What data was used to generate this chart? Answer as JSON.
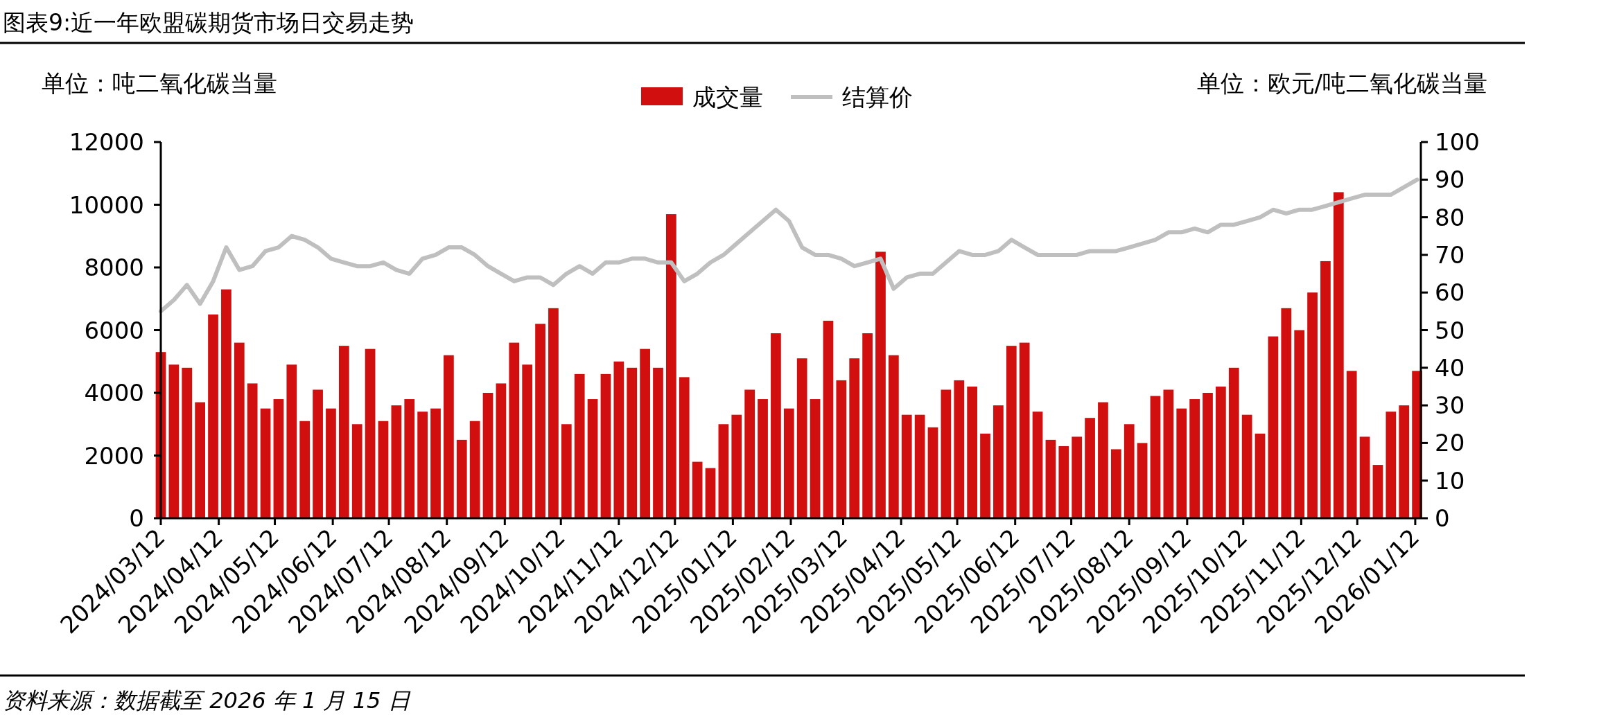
{
  "chart_data": {
    "type": "bar",
    "title": "图表9:近一年欧盟碳期货市场日交易走势",
    "ylabel": "单位：吨二氧化碳当量",
    "y2label": "单位：欧元/吨二氧化碳当量",
    "legend": "top",
    "annotations": [
      "资料来源：数据截至 2026 年 1 月 15 日"
    ],
    "x": [
      "2024-03-12",
      "2024-03-19",
      "2024-03-26",
      "2024-04-02",
      "2024-04-09",
      "2024-04-16",
      "2024-04-23",
      "2024-04-30",
      "2024-05-07",
      "2024-05-14",
      "2024-05-21",
      "2024-05-28",
      "2024-06-04",
      "2024-06-11",
      "2024-06-18",
      "2024-06-25",
      "2024-07-02",
      "2024-07-09",
      "2024-07-16",
      "2024-07-23",
      "2024-07-30",
      "2024-08-06",
      "2024-08-13",
      "2024-08-20",
      "2024-08-27",
      "2024-09-03",
      "2024-09-10",
      "2024-09-17",
      "2024-09-24",
      "2024-10-01",
      "2024-10-08",
      "2024-10-15",
      "2024-10-22",
      "2024-10-29",
      "2024-11-05",
      "2024-11-12",
      "2024-11-19",
      "2024-11-26",
      "2024-12-03",
      "2024-12-10",
      "2024-12-17",
      "2024-12-24",
      "2024-12-31",
      "2025-01-07",
      "2025-01-14",
      "2025-01-21",
      "2025-01-28",
      "2025-02-04",
      "2025-02-11",
      "2025-02-18",
      "2025-02-25",
      "2025-03-04",
      "2025-03-11",
      "2025-03-18",
      "2025-03-25",
      "2025-04-01",
      "2025-04-08",
      "2025-04-15",
      "2025-04-22",
      "2025-04-29",
      "2025-05-06",
      "2025-05-13",
      "2025-05-20",
      "2025-05-27",
      "2025-06-03",
      "2025-06-10",
      "2025-06-17",
      "2025-06-24",
      "2025-07-01",
      "2025-07-08",
      "2025-07-15",
      "2025-07-22",
      "2025-07-29",
      "2025-08-05",
      "2025-08-12",
      "2025-08-19",
      "2025-08-26",
      "2025-09-02",
      "2025-09-09",
      "2025-09-16",
      "2025-09-23",
      "2025-09-30",
      "2025-10-07",
      "2025-10-14",
      "2025-10-21",
      "2025-10-28",
      "2025-11-04",
      "2025-11-11",
      "2025-11-18",
      "2025-11-25",
      "2025-12-02",
      "2025-12-09",
      "2025-12-16",
      "2025-12-23",
      "2025-12-30",
      "2026-01-06",
      "2026-01-13"
    ],
    "series": [
      {
        "name": "成交量",
        "color": "#d20f0f",
        "values": [
          5300,
          4900,
          4800,
          3700,
          6500,
          7300,
          5600,
          4300,
          3500,
          3800,
          4900,
          3100,
          4100,
          3500,
          5500,
          3000,
          5400,
          3100,
          3600,
          3800,
          3400,
          3500,
          5200,
          2500,
          3100,
          4000,
          4300,
          5600,
          4900,
          6200,
          6700,
          3000,
          4600,
          3800,
          4600,
          5000,
          4800,
          5400,
          4800,
          9700,
          4500,
          1800,
          1600,
          3000,
          3300,
          4100,
          3800,
          5900,
          3500,
          5100,
          3800,
          6300,
          4400,
          5100,
          5900,
          8500,
          5200,
          3300,
          3300,
          2900,
          4100,
          4400,
          4200,
          2700,
          3600,
          5500,
          5600,
          3400,
          2500,
          2300,
          2600,
          3200,
          3700,
          2200,
          3000,
          2400,
          3900,
          4100,
          3500,
          3800,
          4000,
          4200,
          4800,
          3300,
          2700,
          5800,
          6700,
          6000,
          7200,
          8200,
          10400,
          4700,
          2600,
          1700,
          3400,
          3600,
          4700
        ]
      },
      {
        "name": "结算价",
        "type": "line",
        "axis": "y2",
        "color": "#bfbfbf",
        "values": [
          55,
          58,
          62,
          57,
          63,
          72,
          66,
          67,
          71,
          72,
          75,
          74,
          72,
          69,
          68,
          67,
          67,
          68,
          66,
          65,
          69,
          70,
          72,
          72,
          70,
          67,
          65,
          63,
          64,
          64,
          62,
          65,
          67,
          65,
          68,
          68,
          69,
          69,
          68,
          68,
          63,
          65,
          68,
          70,
          73,
          76,
          79,
          82,
          79,
          72,
          70,
          70,
          69,
          67,
          68,
          69,
          61,
          64,
          65,
          65,
          68,
          71,
          70,
          70,
          71,
          74,
          72,
          70,
          70,
          70,
          70,
          71,
          71,
          71,
          72,
          73,
          74,
          76,
          76,
          77,
          76,
          78,
          78,
          79,
          80,
          82,
          81,
          82,
          82,
          83,
          84,
          85,
          86,
          86,
          86,
          88,
          90
        ]
      }
    ],
    "xlim": [
      "2024-03-12",
      "2026-01-15"
    ],
    "xticks": [
      {
        "value": "2024-03-12",
        "label": "2024/03/12"
      },
      {
        "value": "2024-04-12",
        "label": "2024/04/12"
      },
      {
        "value": "2024-05-12",
        "label": "2024/05/12"
      },
      {
        "value": "2024-06-12",
        "label": "2024/06/12"
      },
      {
        "value": "2024-07-12",
        "label": "2024/07/12"
      },
      {
        "value": "2024-08-12",
        "label": "2024/08/12"
      },
      {
        "value": "2024-09-12",
        "label": "2024/09/12"
      },
      {
        "value": "2024-10-12",
        "label": "2024/10/12"
      },
      {
        "value": "2024-11-12",
        "label": "2024/11/12"
      },
      {
        "value": "2024-12-12",
        "label": "2024/12/12"
      },
      {
        "value": "2025-01-12",
        "label": "2025/01/12"
      },
      {
        "value": "2025-02-12",
        "label": "2025/02/12"
      },
      {
        "value": "2025-03-12",
        "label": "2025/03/12"
      },
      {
        "value": "2025-04-12",
        "label": "2025/04/12"
      },
      {
        "value": "2025-05-12",
        "label": "2025/05/12"
      },
      {
        "value": "2025-06-12",
        "label": "2025/06/12"
      },
      {
        "value": "2025-07-12",
        "label": "2025/07/12"
      },
      {
        "value": "2025-08-12",
        "label": "2025/08/12"
      },
      {
        "value": "2025-09-12",
        "label": "2025/09/12"
      },
      {
        "value": "2025-10-12",
        "label": "2025/10/12"
      },
      {
        "value": "2025-11-12",
        "label": "2025/11/12"
      },
      {
        "value": "2025-12-12",
        "label": "2025/12/12"
      },
      {
        "value": "2026-01-12",
        "label": "2026/01/12"
      }
    ],
    "ylim": [
      0,
      12000
    ],
    "yticks": [
      0,
      2000,
      4000,
      6000,
      8000,
      10000,
      12000
    ],
    "y2lim": [
      0,
      100
    ],
    "y2ticks": [
      0,
      10,
      20,
      30,
      40,
      50,
      60,
      70,
      80,
      90,
      100
    ]
  }
}
